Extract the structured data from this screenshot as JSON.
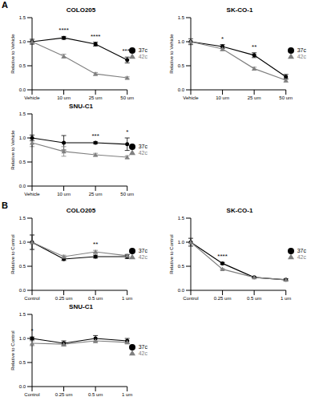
{
  "panel_labels": [
    "A",
    "B"
  ],
  "chart_data": [
    {
      "type": "line",
      "title": "COLO205",
      "y_label": "Relative to Vehicle",
      "categories": [
        "Vehicle",
        "10 um",
        "25 um",
        "50 um"
      ],
      "ylim": [
        0,
        1.5
      ],
      "yticks": [
        {
          "value": 0,
          "label": "0.0"
        },
        {
          "value": 0.5,
          "label": "0.5"
        },
        {
          "value": 1,
          "label": "1.0"
        },
        {
          "value": 1.5,
          "label": "1.5"
        }
      ],
      "legend": "right",
      "series": [
        {
          "name": "37c",
          "color": "#000000",
          "marker": "circle",
          "values": [
            1.0,
            1.08,
            0.95,
            0.62
          ],
          "errors": [
            0.05,
            0.03,
            0.04,
            0.06
          ]
        },
        {
          "name": "42c",
          "color": "#808080",
          "marker": "triangle",
          "values": [
            1.0,
            0.7,
            0.33,
            0.25
          ],
          "errors": [
            0.05,
            0.04,
            0.03,
            0.02
          ]
        }
      ],
      "annotations": [
        {
          "x": "10 um",
          "text": "****"
        },
        {
          "x": "25 um",
          "text": "****"
        },
        {
          "x": "50 um",
          "text": "****"
        }
      ]
    },
    {
      "type": "line",
      "title": "SK-CO-1",
      "y_label": "Relative to Vehicle",
      "categories": [
        "Vehicle",
        "10 um",
        "25 um",
        "50 um"
      ],
      "ylim": [
        0,
        1.5
      ],
      "yticks": [
        {
          "value": 0,
          "label": "0.0"
        },
        {
          "value": 0.5,
          "label": "0.5"
        },
        {
          "value": 1,
          "label": "1.0"
        },
        {
          "value": 1.5,
          "label": "1.5"
        }
      ],
      "legend": "right",
      "series": [
        {
          "name": "37c",
          "color": "#000000",
          "marker": "circle",
          "values": [
            1.0,
            0.9,
            0.72,
            0.27
          ],
          "errors": [
            0.06,
            0.04,
            0.05,
            0.05
          ]
        },
        {
          "name": "42c",
          "color": "#808080",
          "marker": "triangle",
          "values": [
            1.0,
            0.85,
            0.44,
            0.2
          ],
          "errors": [
            0.06,
            0.04,
            0.03,
            0.04
          ]
        }
      ],
      "annotations": [
        {
          "x": "10 um",
          "text": "*"
        },
        {
          "x": "25 um",
          "text": "**"
        }
      ]
    },
    {
      "type": "line",
      "title": "SNU-C1",
      "y_label": "Relative to Vehicle",
      "categories": [
        "Vehicle",
        "10 um",
        "25 um",
        "50 um"
      ],
      "ylim": [
        0,
        1.5
      ],
      "yticks": [
        {
          "value": 0,
          "label": "0.0"
        },
        {
          "value": 0.5,
          "label": "0.5"
        },
        {
          "value": 1,
          "label": "1.0"
        },
        {
          "value": 1.5,
          "label": "1.5"
        }
      ],
      "legend": "right",
      "series": [
        {
          "name": "37c",
          "color": "#000000",
          "marker": "circle",
          "values": [
            1.0,
            0.9,
            0.9,
            0.87
          ],
          "errors": [
            0.06,
            0.15,
            0.02,
            0.13
          ]
        },
        {
          "name": "42c",
          "color": "#808080",
          "marker": "triangle",
          "values": [
            0.9,
            0.72,
            0.65,
            0.6
          ],
          "errors": [
            0.08,
            0.1,
            0.03,
            0.03
          ]
        }
      ],
      "annotations": [
        {
          "x": "25 um",
          "text": "***"
        },
        {
          "x": "50 um",
          "text": "*"
        }
      ]
    },
    {
      "type": "line",
      "title": "COLO205",
      "y_label": "Relative to Control",
      "categories": [
        "Control",
        "0.25 um",
        "0.5 um",
        "1 um"
      ],
      "ylim": [
        0,
        1.5
      ],
      "yticks": [
        {
          "value": 0,
          "label": "0.0"
        },
        {
          "value": 0.5,
          "label": "0.5"
        },
        {
          "value": 1,
          "label": "1.0"
        },
        {
          "value": 1.5,
          "label": "1.5"
        }
      ],
      "legend": "right",
      "series": [
        {
          "name": "37c",
          "color": "#000000",
          "marker": "circle",
          "values": [
            1.0,
            0.65,
            0.7,
            0.7
          ],
          "errors": [
            0.15,
            0.03,
            0.03,
            0.04
          ]
        },
        {
          "name": "42c",
          "color": "#808080",
          "marker": "triangle",
          "values": [
            1.0,
            0.7,
            0.8,
            0.72
          ],
          "errors": [
            0.15,
            0.03,
            0.03,
            0.03
          ]
        }
      ],
      "annotations": [
        {
          "x": "0.5 um",
          "text": "**"
        }
      ]
    },
    {
      "type": "line",
      "title": "SK-CO-1",
      "y_label": "Relative to Control",
      "categories": [
        "Control",
        "0.25 um",
        "0.5 um",
        "1 um"
      ],
      "ylim": [
        0,
        1.5
      ],
      "yticks": [
        {
          "value": 0,
          "label": "0.0"
        },
        {
          "value": 0.5,
          "label": "0.5"
        },
        {
          "value": 1,
          "label": "1.0"
        },
        {
          "value": 1.5,
          "label": "1.5"
        }
      ],
      "legend": "right",
      "series": [
        {
          "name": "37c",
          "color": "#000000",
          "marker": "circle",
          "values": [
            1.0,
            0.56,
            0.27,
            0.22
          ],
          "errors": [
            0.08,
            0.02,
            0.01,
            0.02
          ]
        },
        {
          "name": "42c",
          "color": "#808080",
          "marker": "triangle",
          "values": [
            1.0,
            0.44,
            0.27,
            0.22
          ],
          "errors": [
            0.08,
            0.01,
            0.01,
            0.02
          ]
        }
      ],
      "annotations": [
        {
          "x": "0.25 um",
          "text": "****"
        }
      ]
    },
    {
      "type": "line",
      "title": "SNU-C1",
      "y_label": "Relative to Control",
      "categories": [
        "Control",
        "0.25 um",
        "0.5 um",
        "1 um"
      ],
      "ylim": [
        0,
        1.5
      ],
      "yticks": [
        {
          "value": 0,
          "label": "0.0"
        },
        {
          "value": 0.5,
          "label": "0.5"
        },
        {
          "value": 1,
          "label": "1.0"
        },
        {
          "value": 1.5,
          "label": "1.5"
        }
      ],
      "legend": "right",
      "series": [
        {
          "name": "37c",
          "color": "#000000",
          "marker": "circle",
          "values": [
            1.0,
            0.9,
            1.0,
            0.95
          ],
          "errors": [
            0.03,
            0.05,
            0.06,
            0.05
          ]
        },
        {
          "name": "42c",
          "color": "#808080",
          "marker": "triangle",
          "values": [
            0.9,
            0.88,
            0.95,
            0.92
          ],
          "errors": [
            0.05,
            0.04,
            0.04,
            0.03
          ]
        }
      ],
      "annotations": [
        {
          "x": "Control",
          "text": "*"
        }
      ]
    }
  ]
}
